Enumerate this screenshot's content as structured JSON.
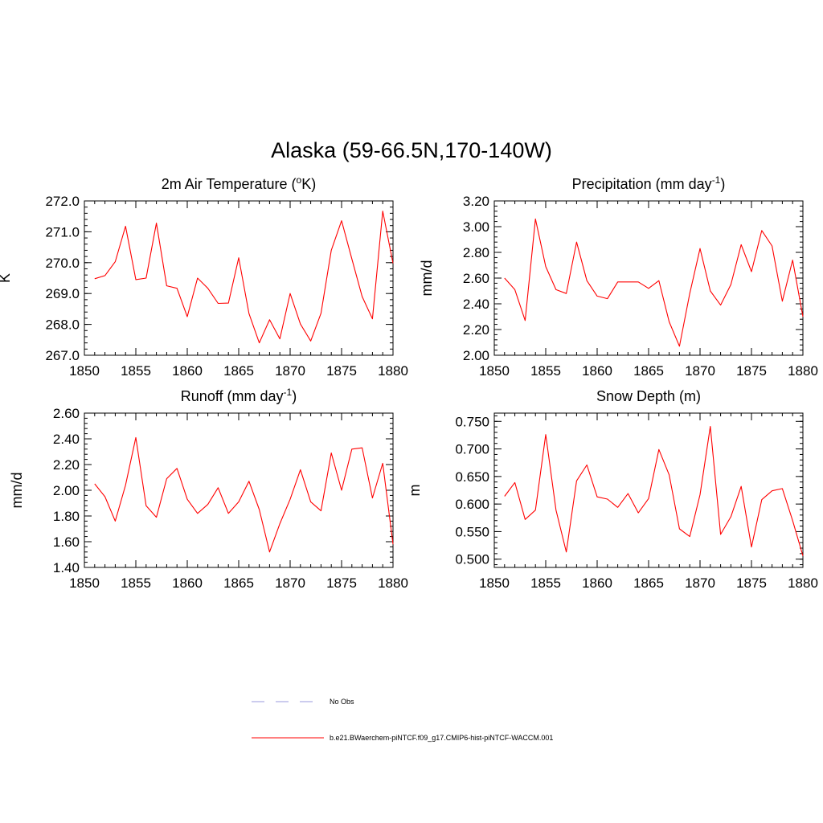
{
  "figure": {
    "title": "Alaska (59-66.5N,170-140W)"
  },
  "legend": {
    "entries": [
      {
        "label": "No Obs",
        "color": "#9999dd",
        "dashed": true
      },
      {
        "label": "b.e21.BWaerchem-piNTCF.f09_g17.CMIP6-hist-piNTCF-WACCM.001",
        "color": "#ff0000",
        "dashed": false
      }
    ]
  },
  "chart_data": [
    {
      "type": "line",
      "title": "2m Air Temperature (",
      "title_sup": "o",
      "title_tail": "K)",
      "ylabel": "K",
      "xlim": [
        1850,
        1880
      ],
      "ylim": [
        267.0,
        272.0
      ],
      "xticks": [
        1850,
        1855,
        1860,
        1865,
        1870,
        1875,
        1880
      ],
      "xtick_labels": [
        "1850",
        "1855",
        "1860",
        "1865",
        "1870",
        "1875",
        "1880"
      ],
      "yticks": [
        267.0,
        268.0,
        269.0,
        270.0,
        271.0,
        272.0
      ],
      "ytick_labels": [
        "267.0",
        "268.0",
        "269.0",
        "270.0",
        "271.0",
        "272.0"
      ],
      "grid": false,
      "series": [
        {
          "color": "#ff0000",
          "x": [
            1851,
            1852,
            1853,
            1854,
            1855,
            1856,
            1857,
            1858,
            1859,
            1860,
            1861,
            1862,
            1863,
            1864,
            1865,
            1866,
            1867,
            1868,
            1869,
            1870,
            1871,
            1872,
            1873,
            1874,
            1875,
            1876,
            1877,
            1878,
            1879,
            1880
          ],
          "values": [
            269.48,
            269.58,
            270.03,
            271.18,
            269.45,
            269.5,
            271.28,
            269.25,
            269.17,
            268.25,
            269.5,
            269.17,
            268.68,
            268.69,
            270.16,
            268.35,
            267.4,
            268.15,
            267.53,
            269.0,
            268.01,
            267.46,
            268.36,
            270.4,
            271.36,
            270.12,
            268.9,
            268.18,
            271.67,
            269.98
          ]
        }
      ]
    },
    {
      "type": "line",
      "title": "Precipitation (mm day",
      "title_sup": "-1",
      "title_tail": ")",
      "ylabel": "mm/d",
      "xlim": [
        1850,
        1880
      ],
      "ylim": [
        2.0,
        3.2
      ],
      "xticks": [
        1850,
        1855,
        1860,
        1865,
        1870,
        1875,
        1880
      ],
      "xtick_labels": [
        "1850",
        "1855",
        "1860",
        "1865",
        "1870",
        "1875",
        "1880"
      ],
      "yticks": [
        2.0,
        2.2,
        2.4,
        2.6,
        2.8,
        3.0,
        3.2
      ],
      "ytick_labels": [
        "2.00",
        "2.20",
        "2.40",
        "2.60",
        "2.80",
        "3.00",
        "3.20"
      ],
      "grid": false,
      "series": [
        {
          "color": "#ff0000",
          "x": [
            1851,
            1852,
            1853,
            1854,
            1855,
            1856,
            1857,
            1858,
            1859,
            1860,
            1861,
            1862,
            1863,
            1864,
            1865,
            1866,
            1867,
            1868,
            1869,
            1870,
            1871,
            1872,
            1873,
            1874,
            1875,
            1876,
            1877,
            1878,
            1879,
            1880
          ],
          "values": [
            2.6,
            2.51,
            2.27,
            3.06,
            2.69,
            2.51,
            2.48,
            2.88,
            2.58,
            2.46,
            2.44,
            2.57,
            2.57,
            2.57,
            2.52,
            2.58,
            2.26,
            2.07,
            2.48,
            2.83,
            2.5,
            2.39,
            2.55,
            2.86,
            2.65,
            2.97,
            2.85,
            2.42,
            2.74,
            2.3
          ]
        }
      ]
    },
    {
      "type": "line",
      "title": "Runoff (mm day",
      "title_sup": "-1",
      "title_tail": ")",
      "ylabel": "mm/d",
      "xlim": [
        1850,
        1880
      ],
      "ylim": [
        1.4,
        2.6
      ],
      "xticks": [
        1850,
        1855,
        1860,
        1865,
        1870,
        1875,
        1880
      ],
      "xtick_labels": [
        "1850",
        "1855",
        "1860",
        "1865",
        "1870",
        "1875",
        "1880"
      ],
      "yticks": [
        1.4,
        1.6,
        1.8,
        2.0,
        2.2,
        2.4,
        2.6
      ],
      "ytick_labels": [
        "1.40",
        "1.60",
        "1.80",
        "2.00",
        "2.20",
        "2.40",
        "2.60"
      ],
      "grid": false,
      "series": [
        {
          "color": "#ff0000",
          "x": [
            1851,
            1852,
            1853,
            1854,
            1855,
            1856,
            1857,
            1858,
            1859,
            1860,
            1861,
            1862,
            1863,
            1864,
            1865,
            1866,
            1867,
            1868,
            1869,
            1870,
            1871,
            1872,
            1873,
            1874,
            1875,
            1876,
            1877,
            1878,
            1879,
            1880
          ],
          "values": [
            2.05,
            1.95,
            1.76,
            2.04,
            2.41,
            1.88,
            1.79,
            2.09,
            2.17,
            1.93,
            1.82,
            1.89,
            2.02,
            1.82,
            1.91,
            2.07,
            1.85,
            1.52,
            1.74,
            1.93,
            2.16,
            1.91,
            1.84,
            2.29,
            2.0,
            2.32,
            2.33,
            1.94,
            2.21,
            1.58
          ]
        }
      ]
    },
    {
      "type": "line",
      "title": "Snow Depth (m)",
      "title_sup": "",
      "title_tail": "",
      "ylabel": "m",
      "xlim": [
        1850,
        1880
      ],
      "ylim": [
        0.485,
        0.765
      ],
      "xticks": [
        1850,
        1855,
        1860,
        1865,
        1870,
        1875,
        1880
      ],
      "xtick_labels": [
        "1850",
        "1855",
        "1860",
        "1865",
        "1870",
        "1875",
        "1880"
      ],
      "yticks": [
        0.5,
        0.55,
        0.6,
        0.65,
        0.7,
        0.75
      ],
      "ytick_labels": [
        "0.500",
        "0.550",
        "0.600",
        "0.650",
        "0.700",
        "0.750"
      ],
      "grid": false,
      "series": [
        {
          "color": "#ff0000",
          "x": [
            1851,
            1852,
            1853,
            1854,
            1855,
            1856,
            1857,
            1858,
            1859,
            1860,
            1861,
            1862,
            1863,
            1864,
            1865,
            1866,
            1867,
            1868,
            1869,
            1870,
            1871,
            1872,
            1873,
            1874,
            1875,
            1876,
            1877,
            1878,
            1879,
            1880
          ],
          "values": [
            0.614,
            0.639,
            0.572,
            0.589,
            0.726,
            0.589,
            0.513,
            0.642,
            0.671,
            0.613,
            0.609,
            0.594,
            0.619,
            0.584,
            0.61,
            0.699,
            0.653,
            0.555,
            0.541,
            0.617,
            0.741,
            0.545,
            0.577,
            0.632,
            0.522,
            0.608,
            0.624,
            0.628,
            0.57,
            0.506
          ]
        }
      ]
    }
  ]
}
